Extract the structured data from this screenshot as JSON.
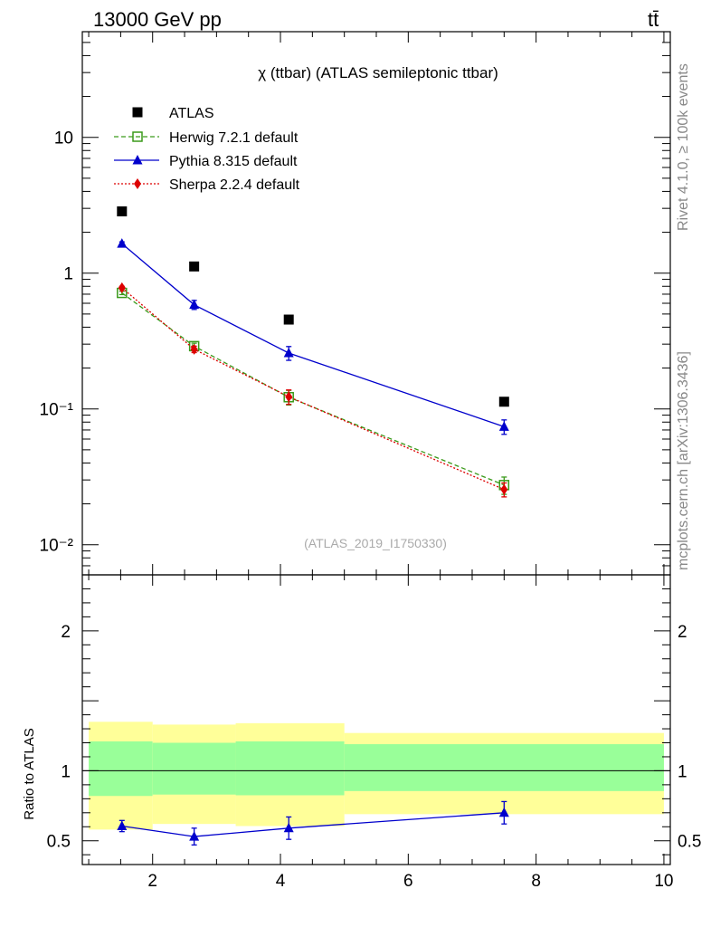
{
  "header": {
    "left": "13000 GeV pp",
    "right": "tt̄"
  },
  "side": {
    "rivet": "Rivet 4.1.0, ≥ 100k events",
    "mcplots": "mcplots.cern.ch [arXiv:1306.3436]"
  },
  "chart_data": {
    "type": "line",
    "title": "χ (ttbar) (ATLAS semileptonic ttbar)",
    "watermark": "(ATLAS_2019_I1750330)",
    "xlabel": "",
    "ylabel": "",
    "xlim": [
      0.9,
      10.1
    ],
    "ylim": [
      0.006,
      60
    ],
    "yscale": "log",
    "x_ticks": [
      2,
      4,
      6,
      8,
      10
    ],
    "y_tick_labels": [
      "10",
      "1",
      "10⁻¹",
      "10⁻²"
    ],
    "legend": [
      "ATLAS",
      "Herwig 7.2.1 default",
      "Pythia 8.315 default",
      "Sherpa 2.2.4 default"
    ],
    "bins": [
      {
        "lo": 1.0,
        "hi": 2.0
      },
      {
        "lo": 2.0,
        "hi": 3.3
      },
      {
        "lo": 3.3,
        "hi": 5.0
      },
      {
        "lo": 5.0,
        "hi": 10.0
      }
    ],
    "x": [
      1.52,
      2.65,
      4.13,
      7.5
    ],
    "series": [
      {
        "name": "ATLAS",
        "color": "#000000",
        "marker": "square",
        "line": "none",
        "values": [
          2.85,
          1.12,
          0.455,
          0.113
        ],
        "err": [
          0,
          0,
          0,
          0
        ]
      },
      {
        "name": "Herwig 7.2.1 default",
        "color": "#3a9a1a",
        "marker": "open-square",
        "line": "dashed",
        "values": [
          0.715,
          0.29,
          0.122,
          0.0275
        ],
        "err": [
          0.02,
          0.015,
          0.015,
          0.004
        ]
      },
      {
        "name": "Pythia 8.315 default",
        "color": "#0000cc",
        "marker": "triangle",
        "line": "solid",
        "values": [
          1.65,
          0.585,
          0.258,
          0.074
        ],
        "err": [
          0.05,
          0.045,
          0.03,
          0.009
        ]
      },
      {
        "name": "Sherpa 2.2.4 default",
        "color": "#dd0000",
        "marker": "diamond",
        "line": "dotted",
        "values": [
          0.78,
          0.275,
          0.123,
          0.0255
        ],
        "err": [
          0.02,
          0.015,
          0.015,
          0.003
        ]
      }
    ],
    "ratio": {
      "ylabel": "Ratio to ATLAS",
      "ylim": [
        0.33,
        2.4
      ],
      "y_tick_labels": [
        "0.5",
        "1",
        "2"
      ],
      "y_ticks": [
        0.5,
        1,
        2
      ],
      "band_inner": [
        [
          0.82,
          1.21
        ],
        [
          0.83,
          1.2
        ],
        [
          0.825,
          1.21
        ],
        [
          0.855,
          1.19
        ]
      ],
      "band_outer": [
        [
          0.58,
          1.35
        ],
        [
          0.62,
          1.33
        ],
        [
          0.605,
          1.34
        ],
        [
          0.69,
          1.27
        ]
      ],
      "pythia": {
        "values": [
          0.605,
          0.53,
          0.59,
          0.7
        ],
        "err": [
          0.04,
          0.06,
          0.08,
          0.08
        ]
      }
    }
  }
}
